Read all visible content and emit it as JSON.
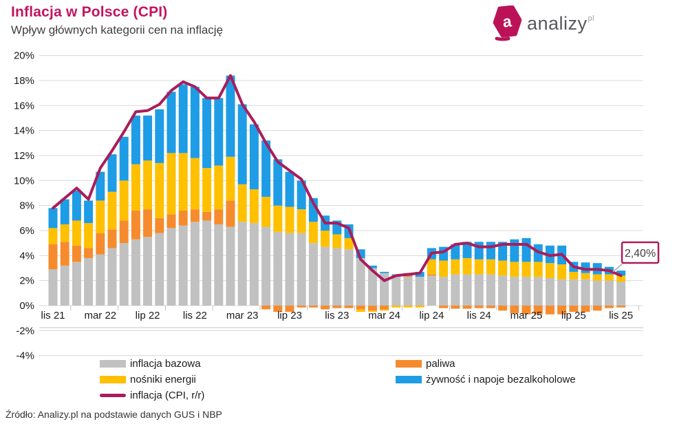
{
  "header": {
    "title": "Inflacja w Polsce (CPI)",
    "subtitle": "Wpływ głównych kategorii cen na inflację"
  },
  "logo": {
    "icon_letter": "a",
    "text": "analizy",
    "suffix": "pl"
  },
  "footer": {
    "source": "Źródło: Analizy.pl na podstawie danych GUS i NBP"
  },
  "annotation": {
    "text": "2,40%",
    "value": 2.4
  },
  "colors": {
    "core": "#C1C1C1",
    "fuels": "#F68B2E",
    "energy": "#FFC000",
    "food": "#1E9CE5",
    "cpi_line": "#A91D5B",
    "title": "#C21460",
    "grid": "#D9D9D9",
    "axis_text": "#1A1A1A",
    "annotation_border": "#A91D5B",
    "leader": "#ABABAB",
    "logo_brand": "#BB1257"
  },
  "legend": {
    "items": [
      {
        "id": "core",
        "label": "inflacja bazowa",
        "swatch": "bar",
        "color_key": "core"
      },
      {
        "id": "energy",
        "label": "nośniki energii",
        "swatch": "bar",
        "color_key": "energy"
      },
      {
        "id": "cpi",
        "label": "inflacja (CPI, r/r)",
        "swatch": "line",
        "color_key": "cpi_line"
      },
      {
        "id": "fuels",
        "label": "paliwa",
        "swatch": "bar",
        "color_key": "fuels"
      },
      {
        "id": "food",
        "label": "żywność i napoje bezalkoholowe",
        "swatch": "bar",
        "color_key": "food"
      }
    ]
  },
  "chart_data": {
    "type": "bar",
    "stacked": true,
    "grid": true,
    "legend_position": "bottom",
    "ylim": [
      -4,
      20
    ],
    "ytick_step": 2,
    "ytick_format": "percent",
    "categories": [
      "lis 21",
      "gru 21",
      "sty 22",
      "lut 22",
      "mar 22",
      "kwi 22",
      "maj 22",
      "cze 22",
      "lip 22",
      "sie 22",
      "wrz 22",
      "paź 22",
      "lis 22",
      "gru 22",
      "sty 23",
      "lut 23",
      "mar 23",
      "kwi 23",
      "maj 23",
      "cze 23",
      "lip 23",
      "sie 23",
      "wrz 23",
      "paź 23",
      "lis 23",
      "gru 23",
      "sty 24",
      "lut 24",
      "mar 24",
      "kwi 24",
      "maj 24",
      "cze 24",
      "lip 24",
      "sie 24",
      "wrz 24",
      "paź 24",
      "lis 24",
      "gru 24",
      "sty 25",
      "lut 25",
      "mar 25",
      "kwi 25",
      "maj 25",
      "cze 25",
      "lip 25",
      "sie 25",
      "wrz 25",
      "paź 25",
      "lis 25"
    ],
    "x_tick_labels": [
      "lis 21",
      "mar 22",
      "lip 22",
      "lis 22",
      "mar 23",
      "lip 23",
      "lis 23",
      "mar 24",
      "lip 24",
      "lis 24",
      "mar 25",
      "lip 25",
      "lis 25"
    ],
    "x_tick_every": 4,
    "series": [
      {
        "name": "inflacja bazowa",
        "color_key": "core",
        "values": [
          2.9,
          3.2,
          3.5,
          3.8,
          4.1,
          4.6,
          5.0,
          5.3,
          5.5,
          5.8,
          6.2,
          6.4,
          6.7,
          6.8,
          6.5,
          6.3,
          6.7,
          6.6,
          6.3,
          5.9,
          5.8,
          5.8,
          5.0,
          4.7,
          4.6,
          4.5,
          3.8,
          3.0,
          2.6,
          2.3,
          2.3,
          2.3,
          2.4,
          2.3,
          2.5,
          2.5,
          2.5,
          2.5,
          2.4,
          2.3,
          2.3,
          2.3,
          2.2,
          2.1,
          2.1,
          2.1,
          2.0,
          2.0,
          1.9
        ]
      },
      {
        "name": "paliwa",
        "color_key": "fuels",
        "values": [
          2.0,
          1.9,
          1.3,
          0.8,
          1.7,
          1.5,
          1.8,
          2.3,
          2.2,
          1.2,
          1.1,
          1.2,
          1.0,
          0.7,
          1.2,
          2.1,
          0.0,
          0.0,
          -0.3,
          -0.5,
          -0.5,
          -0.15,
          -0.15,
          -0.3,
          -0.2,
          -0.2,
          -0.3,
          -0.4,
          -0.3,
          0.1,
          0.1,
          0.0,
          0.1,
          -0.2,
          -0.25,
          -0.25,
          -0.2,
          -0.2,
          -0.4,
          -0.6,
          -0.7,
          -0.7,
          -0.7,
          -0.7,
          -0.5,
          -0.5,
          -0.4,
          -0.2,
          -0.15
        ]
      },
      {
        "name": "nośniki energii",
        "color_key": "energy",
        "values": [
          1.3,
          1.4,
          2.0,
          2.0,
          2.6,
          3.0,
          3.2,
          3.7,
          3.9,
          4.4,
          4.9,
          4.6,
          4.1,
          3.5,
          3.5,
          3.5,
          3.0,
          2.7,
          2.4,
          2.1,
          2.1,
          1.9,
          1.7,
          1.3,
          1.1,
          0.9,
          -0.2,
          -0.1,
          -0.1,
          -0.15,
          -0.15,
          -0.15,
          1.2,
          1.3,
          1.2,
          1.3,
          1.2,
          1.2,
          1.2,
          1.2,
          1.2,
          1.2,
          1.2,
          1.2,
          0.6,
          0.5,
          0.5,
          0.5,
          0.5
        ]
      },
      {
        "name": "żywność i napoje bezalkoholowe",
        "color_key": "food",
        "values": [
          1.6,
          2.0,
          2.4,
          1.8,
          2.3,
          3.0,
          3.5,
          3.9,
          3.6,
          4.3,
          4.9,
          5.5,
          5.7,
          5.6,
          5.4,
          6.5,
          6.4,
          5.2,
          4.5,
          3.7,
          2.8,
          2.3,
          1.9,
          1.2,
          1.1,
          1.1,
          0.7,
          0.2,
          0.1,
          0.1,
          0.2,
          0.4,
          0.9,
          1.1,
          1.2,
          1.3,
          1.4,
          1.4,
          1.5,
          1.8,
          1.9,
          1.4,
          1.4,
          1.5,
          0.8,
          0.85,
          0.9,
          0.6,
          0.4
        ]
      }
    ],
    "line_series": {
      "name": "inflacja (CPI, r/r)",
      "color_key": "cpi_line",
      "values": [
        7.8,
        8.6,
        9.4,
        8.5,
        11.0,
        12.4,
        13.9,
        15.5,
        15.6,
        16.1,
        17.2,
        17.9,
        17.5,
        16.6,
        16.6,
        18.4,
        16.1,
        14.7,
        13.0,
        11.5,
        10.8,
        10.1,
        8.2,
        6.6,
        6.6,
        6.2,
        3.7,
        2.8,
        2.0,
        2.4,
        2.5,
        2.6,
        4.2,
        4.3,
        4.9,
        5.0,
        4.7,
        4.7,
        4.9,
        4.9,
        4.9,
        4.3,
        4.0,
        4.1,
        3.1,
        2.9,
        2.9,
        2.8,
        2.4
      ]
    },
    "last_point_label": "2,40%"
  }
}
